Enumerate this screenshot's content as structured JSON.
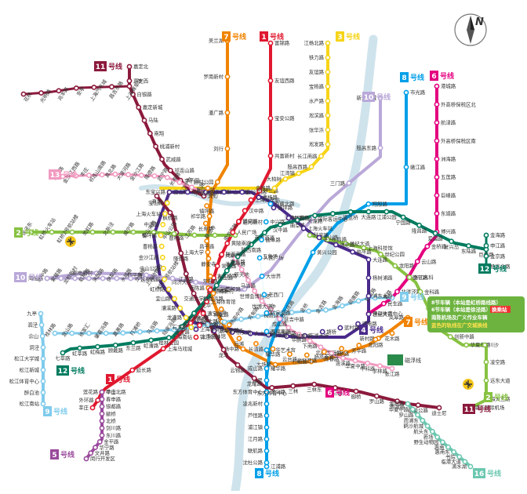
{
  "map": {
    "compass_letter": "N",
    "lines": [
      {
        "id": "1",
        "number": "1",
        "suffix": "号线",
        "color": "#e0182f"
      },
      {
        "id": "2",
        "number": "2",
        "suffix": "号线",
        "color": "#87c242"
      },
      {
        "id": "3",
        "number": "3",
        "suffix": "号线",
        "color": "#f7d417"
      },
      {
        "id": "4",
        "number": "4",
        "suffix": "号线",
        "color": "#4a2a8a"
      },
      {
        "id": "5",
        "number": "5",
        "suffix": "号线",
        "color": "#9a4a9c"
      },
      {
        "id": "6",
        "number": "6",
        "suffix": "号线",
        "color": "#e4007f"
      },
      {
        "id": "7",
        "number": "7",
        "suffix": "号线",
        "color": "#f08300"
      },
      {
        "id": "8",
        "number": "8",
        "suffix": "号线",
        "color": "#009fe8"
      },
      {
        "id": "9",
        "number": "9",
        "suffix": "号线",
        "color": "#7fcbec"
      },
      {
        "id": "10",
        "number": "10",
        "suffix": "号线",
        "color": "#b9a8d8"
      },
      {
        "id": "11",
        "number": "11",
        "suffix": "号线",
        "color": "#8b1a3c"
      },
      {
        "id": "12",
        "number": "12",
        "suffix": "号线",
        "color": "#007b5f"
      },
      {
        "id": "13",
        "number": "13",
        "suffix": "号线",
        "color": "#f29ac0"
      },
      {
        "id": "16",
        "number": "16",
        "suffix": "号线",
        "color": "#6cc7b0"
      }
    ],
    "stations": {
      "line1_north": [
        "富锦路",
        "友谊西路",
        "宝安公路",
        "共富新村",
        "呼兰路",
        "通河新村",
        "共康路",
        "彭浦新村",
        "汶水路",
        "上海马戏城",
        "延长路",
        "中山北路"
      ],
      "line1_south": [
        "莲花路",
        "外环路",
        "莘庄"
      ],
      "line7_north": [
        "美兰湖",
        "罗南新村",
        "潘广路",
        "刘行",
        "顾村公园",
        "祁华路",
        "上海大学",
        "南陈路",
        "上大路",
        "场中路",
        "大场镇",
        "行知路",
        "大华三路",
        "新村路",
        "岚皋路"
      ],
      "line3": [
        "江杨北路",
        "铁力路",
        "友谊路",
        "宝杨路",
        "水产路",
        "淞滨路",
        "张华浜",
        "淞发路",
        "长江南路",
        "殷高西路",
        "江湾镇",
        "大柏树",
        "赤峰路"
      ],
      "line8": [
        "市光路",
        "嫩江路",
        "翔殷路",
        "黄兴公园",
        "延吉中路",
        "黄兴路",
        "江浦路"
      ],
      "line10": [
        "新江湾城",
        "殷高东路",
        "三门路",
        "江湾体育场",
        "五角场",
        "国权路",
        "同济大学",
        "四平路",
        "邮电新村",
        "海伦路"
      ],
      "line6": [
        "港城路",
        "外高桥保税区北",
        "航津路",
        "外高桥保税区南",
        "洲海路",
        "五莲路",
        "巨峰路",
        "东靖路",
        "博兴路",
        "金桥路",
        "云山路",
        "德平路",
        "北洋泾路",
        "民生路",
        "源深体育中心"
      ],
      "line11": [
        "嘉定北",
        "嘉定西",
        "白银路",
        "嘉定新城",
        "马陆",
        "南翔",
        "桃浦新村",
        "武威路",
        "祁连山路",
        "李子园",
        "上海西站",
        "真如"
      ],
      "line11_branch": [
        "花桥",
        "光明路",
        "兆丰路",
        "安亭",
        "上海汽车城",
        "昌吉东路",
        "上海赛车场"
      ],
      "line13": [
        "金运路",
        "金沙江西路",
        "丰庄",
        "祁连山南路",
        "真北路",
        "大渡河路",
        "金沙江路",
        "隆德路",
        "武宁路",
        "长寿路",
        "江宁路",
        "汉中路"
      ],
      "line2_west": [
        "徐泾东",
        "虹桥火车站",
        "虹桥2号航站楼",
        "淞虹路",
        "北新泾",
        "威宁路",
        "娄山关路",
        "中山公园",
        "江苏路",
        "静安寺",
        "南京西路"
      ],
      "line2_east": [
        "陆家嘴",
        "东昌路",
        "世纪大道",
        "上海科技馆",
        "世纪公园",
        "龙阳路",
        "张江高科",
        "金科路",
        "广兰路",
        "唐镇",
        "创新中路",
        "华夏东路",
        "川沙",
        "凌空路",
        "远东大道",
        "海天三路",
        "浦东国际机场"
      ],
      "line10_west": [
        "航中路",
        "紫藤路",
        "龙柏新村",
        "虹桥路",
        "宋园路",
        "伊犁路",
        "水城路",
        "龙溪路",
        "上海动物园",
        "虹桥1号航站楼"
      ],
      "line9_west": [
        "九亭",
        "泗泾",
        "佘山",
        "洞泾",
        "松江大学城",
        "松江新城",
        "松江体育中心",
        "醉白池",
        "松江南站"
      ],
      "line12": [
        "巨峰路",
        "东陆路",
        "复兴岛",
        "爱国路",
        "隆昌路",
        "宁国路",
        "江浦公园",
        "大连路",
        "提篮桥",
        "国际客运中心",
        "天潼路",
        "曲阜路",
        "汉中路",
        "南京西路",
        "陕西南路",
        "嘉善路",
        "大木桥路",
        "龙华中路",
        "龙华",
        "龙漕路",
        "漕宝路",
        "桂林公园",
        "虹漕路",
        "东兰路",
        "顾戴路",
        "虹梅路",
        "虹莘路",
        "七莘路"
      ],
      "line12_east": [
        "金海路",
        "申江路",
        "金京路",
        "杨高北路"
      ],
      "line5": [
        "莘庄",
        "春申路",
        "银都路",
        "颛桥",
        "北桥",
        "剑川路",
        "东川路",
        "金平路",
        "华宁路",
        "文井路",
        "闵行开发区"
      ],
      "line8_south": [
        "成山路",
        "杨思",
        "东方体育中心",
        "凌兆新村",
        "芦恒路",
        "浦江镇",
        "江月路",
        "联航路",
        "沈杜公路"
      ],
      "line16": [
        "龙阳路",
        "华夏中路",
        "罗山路",
        "周浦东",
        "鹤沙航城",
        "航头东",
        "新场",
        "野生动物园",
        "惠南",
        "惠南东",
        "书院",
        "临港大道",
        "滴水湖"
      ],
      "line7_south": [
        "花木路",
        "龙阳路",
        "芳华路",
        "锦绣路",
        "杨高南路",
        "高科西路",
        "云台路",
        "耀华路",
        "长清路",
        "后滩",
        "龙华中路",
        "东安路",
        "肇嘉浜路",
        "常熟路",
        "静安寺",
        "昌平路",
        "长寿路",
        "镇坪路",
        "岚皋路"
      ],
      "line11_south": [
        "迪士尼",
        "康新公路",
        "秀沿路",
        "罗山路",
        "御桥",
        "浦三路",
        "三林东",
        "三林",
        "东方体育中心",
        "龙耀路",
        "云锦路",
        "龙华",
        "上海游泳馆",
        "徐家汇",
        "交通大学",
        "江苏路",
        "隆德路",
        "曹杨路",
        "枫桥路",
        "真如"
      ],
      "line4": [
        "宜山路",
        "虹桥路",
        "延安西路",
        "中山公园",
        "金沙江路",
        "曹杨路",
        "镇坪路",
        "中潭路",
        "上海火车站",
        "宝山路",
        "海伦路",
        "临平路",
        "大连路",
        "杨树浦路",
        "浦东大道",
        "世纪大道",
        "浦电路",
        "蓝村路",
        "塘桥",
        "南浦大桥",
        "西藏南路",
        "鲁班路",
        "大木桥路",
        "东安路",
        "上海体育场",
        "上海体育馆"
      ],
      "line9_center": [
        "桂林路",
        "宜山路",
        "徐家汇",
        "肇嘉浜路",
        "嘉善路",
        "打浦桥",
        "马当路",
        "陆家浜路",
        "小南门",
        "商城路",
        "世纪大道",
        "杨高中路",
        "芳甸路",
        "蓝天路",
        "台儿庄路",
        "金桥",
        "金吉路",
        "金海路",
        "顾唐路",
        "民雷路",
        "曹路"
      ],
      "line8_center": [
        "西藏北路",
        "中兴路",
        "曲阜路",
        "人民广场",
        "大世界",
        "老西门",
        "陆家浜路",
        "西藏南路",
        "中华艺术宫",
        "耀华路"
      ],
      "line13_center": [
        "淮海中路",
        "新天地",
        "马当路",
        "世博会博物馆",
        "世博大道",
        "长清路",
        "成山路",
        "东明路",
        "华鹏路",
        "下南路",
        "北蔡",
        "陈春路",
        "莲溪路",
        "华夏中路",
        "中科路",
        "学林路",
        "张江路"
      ],
      "line1_center": [
        "上海火车站",
        "汉中路",
        "新闸路",
        "人民广场",
        "黄陂南路",
        "陕西南路",
        "常熟路",
        "衡山路",
        "徐家汇",
        "上海体育馆",
        "漕宝路",
        "上海南站",
        "锦江乐园"
      ],
      "line3_center": [
        "东宝兴路",
        "宝山路",
        "上海火车站",
        "中潭路",
        "镇坪路",
        "曹杨路",
        "金沙江路",
        "中山公园",
        "延安西路",
        "虹桥路",
        "宜山路",
        "漕溪路",
        "龙漕路",
        "石龙路",
        "上海南站"
      ]
    },
    "poi": {
      "legend_box_lines": [
        "8节车辆（本站是虹桥路线路）",
        "6节车辆（本站是徐泾路）",
        "换乘站",
        "南陈机场及广义作业车辆",
        "蓝色的轨线在广交城换线"
      ],
      "xfer_tag": "换乘站",
      "logo_label": "磁浮线"
    }
  }
}
